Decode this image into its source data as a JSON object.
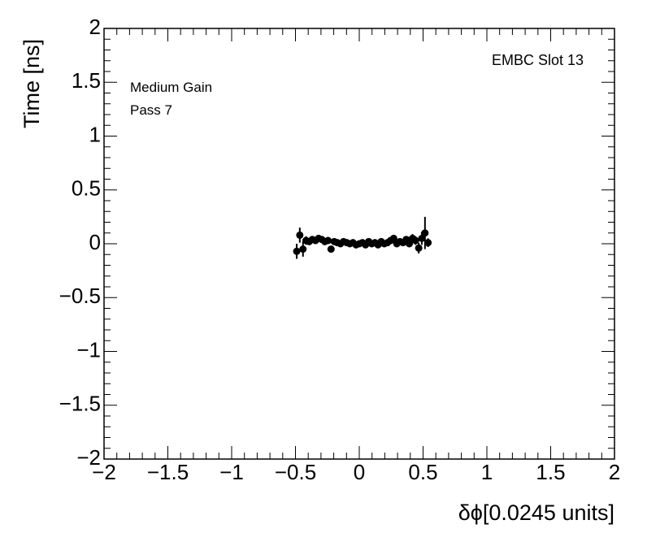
{
  "chart_data": {
    "type": "errorbar",
    "xlabel": "δϕ[0.0245 units]",
    "ylabel": "Time [ns]",
    "annotations": [
      "EMBC Slot 13",
      "Medium Gain",
      "Pass 7"
    ],
    "xlim": [
      -2,
      2
    ],
    "ylim": [
      -2,
      2
    ],
    "xticks": [
      {
        "value": -2,
        "label": "−2"
      },
      {
        "value": -1.5,
        "label": "−1.5"
      },
      {
        "value": -1,
        "label": "−1"
      },
      {
        "value": -0.5,
        "label": "−0.5"
      },
      0,
      0.5,
      1,
      1.5,
      2
    ],
    "yticks": [
      {
        "value": -2,
        "label": "−2"
      },
      {
        "value": -1.5,
        "label": "−1.5"
      },
      {
        "value": -1,
        "label": "−1"
      },
      {
        "value": -0.5,
        "label": "−0.5"
      },
      0,
      0.5,
      1,
      1.5,
      2
    ],
    "color": "#000000",
    "series": [
      {
        "x": [
          -0.49,
          -0.466,
          -0.441,
          -0.417,
          -0.392,
          -0.368,
          -0.343,
          -0.319,
          -0.294,
          -0.27,
          -0.245,
          -0.221,
          -0.196,
          -0.172,
          -0.147,
          -0.123,
          -0.098,
          -0.074,
          -0.049,
          -0.025,
          0,
          0.025,
          0.049,
          0.074,
          0.098,
          0.123,
          0.147,
          0.172,
          0.196,
          0.221,
          0.245,
          0.27,
          0.294,
          0.319,
          0.343,
          0.368,
          0.392,
          0.417,
          0.441,
          0.466,
          0.49,
          0.515,
          0.539
        ],
        "values": [
          -0.07,
          0.08,
          -0.05,
          0.03,
          0.02,
          0.04,
          0.03,
          0.05,
          0.04,
          0.02,
          0.03,
          -0.05,
          0.02,
          0.01,
          0.0,
          0.02,
          0.01,
          0.0,
          0.01,
          -0.01,
          0.0,
          0.01,
          -0.01,
          0.02,
          0.0,
          0.01,
          -0.01,
          0.02,
          0.0,
          0.01,
          0.03,
          0.05,
          0.0,
          0.02,
          0.01,
          0.04,
          0.0,
          0.05,
          0.03,
          -0.04,
          0.05,
          0.1,
          0.01
        ],
        "errors": [
          0.07,
          0.07,
          0.07,
          0.04,
          0.03,
          0.03,
          0.03,
          0.03,
          0.03,
          0.02,
          0.02,
          0.03,
          0.02,
          0.02,
          0.02,
          0.02,
          0.02,
          0.02,
          0.02,
          0.02,
          0.02,
          0.02,
          0.02,
          0.02,
          0.02,
          0.02,
          0.02,
          0.02,
          0.02,
          0.02,
          0.02,
          0.03,
          0.02,
          0.02,
          0.02,
          0.03,
          0.03,
          0.04,
          0.04,
          0.05,
          0.06,
          0.15,
          0.04
        ]
      }
    ]
  }
}
